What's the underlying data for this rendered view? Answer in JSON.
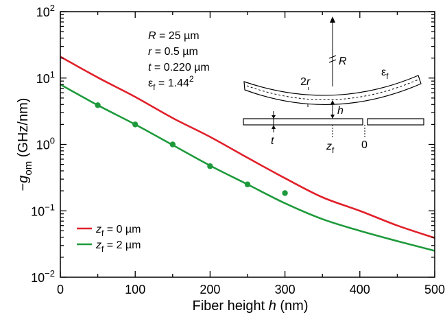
{
  "chart_data": {
    "type": "line",
    "xlabel": "Fiber height h (nm)",
    "ylabel": "−g_om (GHz/nm)",
    "xlim": [
      0,
      500
    ],
    "ylim": [
      0.01,
      100
    ],
    "yscale": "log",
    "x_ticks": [
      "0",
      "100",
      "200",
      "300",
      "400",
      "500"
    ],
    "y_ticks": [
      "10^-2",
      "10^-1",
      "10^0",
      "10^1",
      "10^2"
    ],
    "legend_position": "bottom-left",
    "series": [
      {
        "name": "z_f = 0 µm",
        "color": "#e0202a",
        "x": [
          0,
          50,
          100,
          150,
          200,
          250,
          300,
          350,
          400,
          450,
          500
        ],
        "y": [
          21,
          10.2,
          5.2,
          2.5,
          1.3,
          0.63,
          0.31,
          0.16,
          0.1,
          0.06,
          0.039
        ]
      },
      {
        "name": "z_f = 2 µm",
        "color": "#1e9a3c",
        "x": [
          0,
          50,
          100,
          150,
          200,
          250,
          300,
          350,
          400,
          450,
          500
        ],
        "y": [
          8.0,
          3.9,
          2.0,
          0.98,
          0.48,
          0.25,
          0.13,
          0.075,
          0.05,
          0.035,
          0.025
        ]
      },
      {
        "name": "",
        "type": "scatter",
        "color": "#1e9a3c",
        "x": [
          50,
          100,
          150,
          200,
          250,
          300
        ],
        "y": [
          3.9,
          2.0,
          1.0,
          0.47,
          0.25,
          0.185
        ]
      }
    ],
    "params": [
      {
        "sym": "R",
        "text": " = 25 µm"
      },
      {
        "sym": "r",
        "text": " = 0.5 µm"
      },
      {
        "sym": "t",
        "text": " = 0.220 µm"
      },
      {
        "sym": "ε",
        "sub": "f",
        "text": " = 1.44",
        "sup": "2"
      }
    ],
    "schematic_labels": {
      "R": "R",
      "two_r": "2r",
      "eps": "ε",
      "eps_sub": "f",
      "h": "h",
      "t": "t",
      "zf": "z",
      "zf_sub": "f",
      "zero": "0"
    },
    "legend": [
      {
        "sym": "z",
        "sub": "f",
        "text": " = 0 µm",
        "color": "#e0202a"
      },
      {
        "sym": "z",
        "sub": "f",
        "text": " = 2 µm",
        "color": "#1e9a3c"
      }
    ]
  }
}
